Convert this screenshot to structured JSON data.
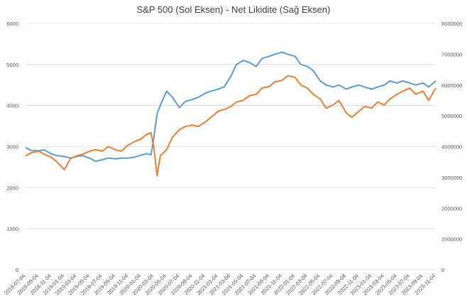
{
  "chart_data": {
    "type": "line",
    "title": "S&P 500 (Sol Eksen) - Net Likidite (Sağ Eksen)",
    "y_left_ticks": [
      "0",
      "1000",
      "2000",
      "3000",
      "4000",
      "5000",
      "6000"
    ],
    "y_right_ticks": [
      "0",
      "1000000",
      "2000000",
      "3000000",
      "4000000",
      "5000000",
      "6000000",
      "7000000",
      "8000000"
    ],
    "ylim_left": [
      0,
      6000
    ],
    "ylim_right": [
      0,
      8000000
    ],
    "grid": true,
    "legend": "none",
    "x_tick_labels": [
      "2018-07-04",
      "2018-09-04",
      "2018-11-04",
      "2019-01-04",
      "2019-03-04",
      "2019-05-04",
      "2019-07-04",
      "2019-09-04",
      "2019-11-04",
      "2020-01-04",
      "2020-03-04",
      "2020-05-04",
      "2020-07-04",
      "2020-09-04",
      "2020-11-04",
      "2021-01-04",
      "2021-03-04",
      "2021-05-04",
      "2021-07-04",
      "2021-09-04",
      "2021-11-04",
      "2022-01-04",
      "2022-03-04",
      "2022-05-04",
      "2022-07-04",
      "2022-09-04",
      "2022-11-04",
      "2023-01-04",
      "2023-03-04",
      "2023-05-04",
      "2023-07-04",
      "2023-09-04",
      "2023-11-04"
    ],
    "series": [
      {
        "axis": "left",
        "color": "#5b9bd5",
        "points": [
          [
            "2018-07-04",
            2980
          ],
          [
            "2018-08-01",
            2900
          ],
          [
            "2018-09-04",
            2900
          ],
          [
            "2018-10-01",
            2920
          ],
          [
            "2018-11-04",
            2820
          ],
          [
            "2018-12-01",
            2780
          ],
          [
            "2019-01-04",
            2760
          ],
          [
            "2019-02-01",
            2720
          ],
          [
            "2019-03-04",
            2760
          ],
          [
            "2019-04-01",
            2780
          ],
          [
            "2019-05-04",
            2720
          ],
          [
            "2019-06-01",
            2640
          ],
          [
            "2019-07-04",
            2680
          ],
          [
            "2019-08-01",
            2720
          ],
          [
            "2019-09-04",
            2700
          ],
          [
            "2019-10-01",
            2720
          ],
          [
            "2019-11-04",
            2720
          ],
          [
            "2019-12-01",
            2740
          ],
          [
            "2020-01-04",
            2790
          ],
          [
            "2020-02-01",
            2830
          ],
          [
            "2020-02-20",
            2800
          ],
          [
            "2020-03-04",
            3200
          ],
          [
            "2020-03-20",
            3800
          ],
          [
            "2020-04-04",
            4000
          ],
          [
            "2020-05-04",
            4350
          ],
          [
            "2020-06-01",
            4200
          ],
          [
            "2020-07-04",
            3950
          ],
          [
            "2020-08-01",
            4100
          ],
          [
            "2020-09-04",
            4150
          ],
          [
            "2020-10-01",
            4200
          ],
          [
            "2020-11-04",
            4300
          ],
          [
            "2020-12-01",
            4350
          ],
          [
            "2021-01-04",
            4400
          ],
          [
            "2021-02-01",
            4450
          ],
          [
            "2021-03-04",
            4700
          ],
          [
            "2021-04-01",
            5000
          ],
          [
            "2021-05-04",
            5100
          ],
          [
            "2021-06-01",
            5050
          ],
          [
            "2021-07-04",
            4950
          ],
          [
            "2021-08-01",
            5150
          ],
          [
            "2021-09-04",
            5200
          ],
          [
            "2021-10-01",
            5250
          ],
          [
            "2021-11-04",
            5300
          ],
          [
            "2021-12-01",
            5250
          ],
          [
            "2022-01-04",
            5200
          ],
          [
            "2022-02-01",
            5000
          ],
          [
            "2022-03-04",
            4950
          ],
          [
            "2022-04-01",
            4850
          ],
          [
            "2022-05-04",
            4600
          ],
          [
            "2022-06-01",
            4500
          ],
          [
            "2022-07-04",
            4450
          ],
          [
            "2022-08-01",
            4500
          ],
          [
            "2022-09-04",
            4400
          ],
          [
            "2022-10-01",
            4450
          ],
          [
            "2022-11-04",
            4500
          ],
          [
            "2022-12-01",
            4450
          ],
          [
            "2023-01-04",
            4400
          ],
          [
            "2023-02-01",
            4450
          ],
          [
            "2023-03-04",
            4500
          ],
          [
            "2023-04-01",
            4600
          ],
          [
            "2023-05-04",
            4550
          ],
          [
            "2023-06-01",
            4600
          ],
          [
            "2023-07-04",
            4550
          ],
          [
            "2023-08-01",
            4500
          ],
          [
            "2023-09-04",
            4550
          ],
          [
            "2023-10-01",
            4450
          ],
          [
            "2023-11-04",
            4600
          ]
        ]
      },
      {
        "axis": "right",
        "color": "#ed7d31",
        "points": [
          [
            "2018-07-04",
            3700000
          ],
          [
            "2018-08-01",
            3800000
          ],
          [
            "2018-09-04",
            3850000
          ],
          [
            "2018-10-01",
            3750000
          ],
          [
            "2018-11-04",
            3650000
          ],
          [
            "2018-12-01",
            3500000
          ],
          [
            "2019-01-04",
            3250000
          ],
          [
            "2019-02-01",
            3600000
          ],
          [
            "2019-03-04",
            3700000
          ],
          [
            "2019-04-01",
            3750000
          ],
          [
            "2019-05-04",
            3850000
          ],
          [
            "2019-06-01",
            3900000
          ],
          [
            "2019-07-04",
            3850000
          ],
          [
            "2019-08-01",
            4000000
          ],
          [
            "2019-09-04",
            3900000
          ],
          [
            "2019-10-01",
            3850000
          ],
          [
            "2019-11-04",
            4050000
          ],
          [
            "2019-12-01",
            4150000
          ],
          [
            "2020-01-04",
            4250000
          ],
          [
            "2020-02-01",
            4400000
          ],
          [
            "2020-02-20",
            4450000
          ],
          [
            "2020-03-04",
            4000000
          ],
          [
            "2020-03-20",
            3050000
          ],
          [
            "2020-04-04",
            3700000
          ],
          [
            "2020-05-04",
            3900000
          ],
          [
            "2020-06-01",
            4300000
          ],
          [
            "2020-07-04",
            4550000
          ],
          [
            "2020-08-01",
            4650000
          ],
          [
            "2020-09-04",
            4700000
          ],
          [
            "2020-10-01",
            4650000
          ],
          [
            "2020-11-04",
            4800000
          ],
          [
            "2020-12-01",
            4950000
          ],
          [
            "2021-01-04",
            5150000
          ],
          [
            "2021-02-01",
            5200000
          ],
          [
            "2021-03-04",
            5300000
          ],
          [
            "2021-04-01",
            5450000
          ],
          [
            "2021-05-04",
            5500000
          ],
          [
            "2021-06-01",
            5650000
          ],
          [
            "2021-07-04",
            5700000
          ],
          [
            "2021-08-01",
            5900000
          ],
          [
            "2021-09-04",
            5950000
          ],
          [
            "2021-10-01",
            6100000
          ],
          [
            "2021-11-04",
            6150000
          ],
          [
            "2021-12-01",
            6300000
          ],
          [
            "2022-01-04",
            6250000
          ],
          [
            "2022-02-01",
            6000000
          ],
          [
            "2022-03-04",
            5900000
          ],
          [
            "2022-04-01",
            5700000
          ],
          [
            "2022-05-04",
            5550000
          ],
          [
            "2022-06-01",
            5250000
          ],
          [
            "2022-07-04",
            5350000
          ],
          [
            "2022-08-01",
            5500000
          ],
          [
            "2022-09-04",
            5100000
          ],
          [
            "2022-10-01",
            4950000
          ],
          [
            "2022-11-04",
            5150000
          ],
          [
            "2022-12-01",
            5300000
          ],
          [
            "2023-01-04",
            5250000
          ],
          [
            "2023-02-01",
            5450000
          ],
          [
            "2023-03-04",
            5350000
          ],
          [
            "2023-04-01",
            5550000
          ],
          [
            "2023-05-04",
            5700000
          ],
          [
            "2023-06-01",
            5800000
          ],
          [
            "2023-07-04",
            5900000
          ],
          [
            "2023-08-01",
            5700000
          ],
          [
            "2023-09-04",
            5800000
          ],
          [
            "2023-10-01",
            5500000
          ],
          [
            "2023-11-04",
            5900000
          ]
        ]
      }
    ]
  }
}
